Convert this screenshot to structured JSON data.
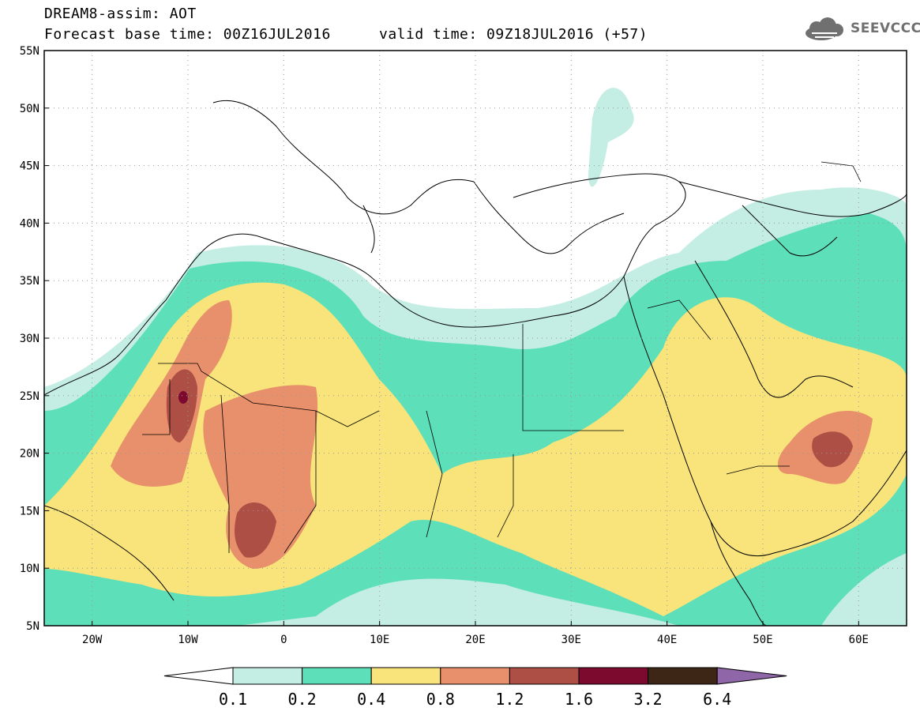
{
  "header": {
    "title_line1": "DREAM8-assim: AOT",
    "title_line2": "Forecast base time: 00Z16JUL2016",
    "valid_time": "valid time: 09Z18JUL2016 (+57)",
    "logo_text": "SEEVCCC"
  },
  "map": {
    "lat_labels": [
      "55N",
      "50N",
      "45N",
      "40N",
      "35N",
      "30N",
      "25N",
      "20N",
      "15N",
      "10N",
      "5N"
    ],
    "lon_labels": [
      "20W",
      "10W",
      "0",
      "10E",
      "20E",
      "30E",
      "40E",
      "50E",
      "60E"
    ],
    "extent": {
      "lon_min": -25,
      "lon_max": 65,
      "lat_min": 5,
      "lat_max": 55
    },
    "grid": "dotted"
  },
  "colorbar": {
    "labels": [
      "0.1",
      "0.2",
      "0.4",
      "0.8",
      "1.2",
      "1.6",
      "3.2",
      "6.4"
    ],
    "colors": [
      "#ffffff",
      "#c4ede3",
      "#5ddfb9",
      "#f8e47a",
      "#e7906b",
      "#ae4f45",
      "#7c0a2e",
      "#3d2616",
      "#8f67a8"
    ]
  },
  "fields": {
    "colors": {
      "c01": "#c4ede3",
      "c02": "#5ddfb9",
      "c04": "#f8e47a",
      "c08": "#e7906b",
      "c12": "#ae4f45",
      "c16": "#7c0a2e"
    }
  }
}
